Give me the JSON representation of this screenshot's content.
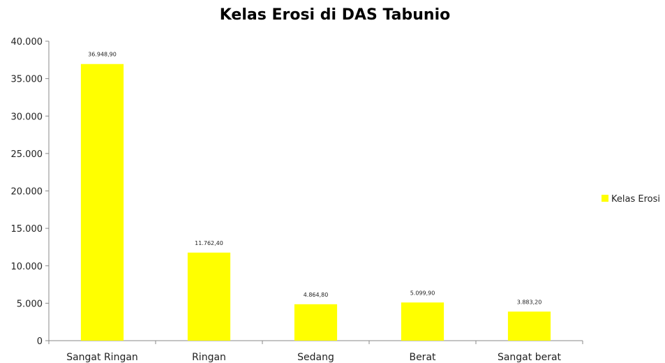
{
  "chart_data": {
    "type": "bar",
    "title": "Kelas Erosi di DAS Tabunio",
    "xlabel": "",
    "ylabel": "",
    "categories": [
      "Sangat Ringan",
      "Ringan",
      "Sedang",
      "Berat",
      "Sangat berat"
    ],
    "series": [
      {
        "name": "Kelas Erosi",
        "values": [
          36948.9,
          11762.4,
          4864.8,
          5099.9,
          3883.2
        ],
        "data_labels": [
          "36.948,90",
          "11.762,40",
          "4.864,80",
          "5.099,90",
          "3.883,20"
        ]
      }
    ],
    "yticks": [
      0,
      5000,
      10000,
      15000,
      20000,
      25000,
      30000,
      35000,
      40000
    ],
    "ytick_labels": [
      "0",
      "5.000",
      "10.000",
      "15.000",
      "20.000",
      "25.000",
      "30.000",
      "35.000",
      "40.000"
    ],
    "ylim": [
      0,
      40000
    ],
    "grid": false,
    "legend_position": "right",
    "bar_color": "#ffff00"
  }
}
